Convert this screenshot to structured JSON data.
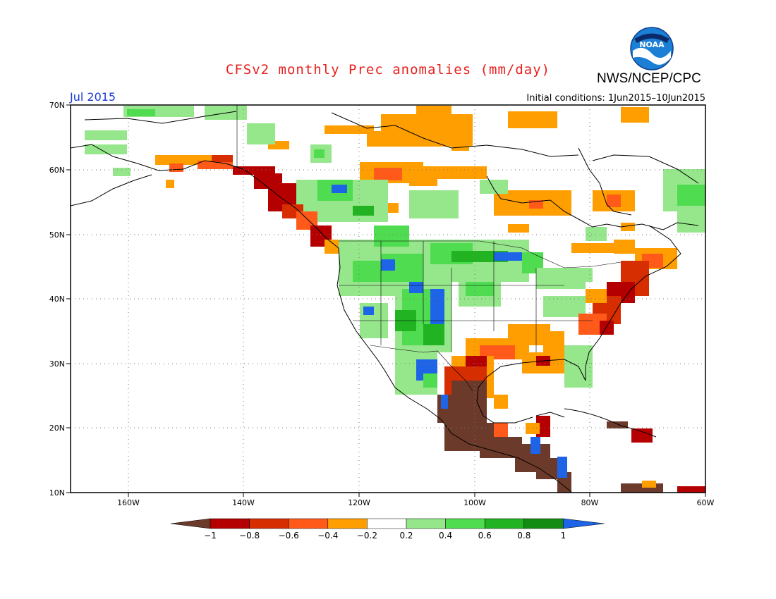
{
  "title": "CFSv2 monthly Prec anomalies (mm/day)",
  "organization": "NWS/NCEP/CPC",
  "logo_text": "NOAA",
  "valid_month": "Jul 2015",
  "initial_conditions": "Initial conditions: 1Jun2015–10Jun2015",
  "map": {
    "lat_labels": [
      "70N",
      "60N",
      "50N",
      "40N",
      "30N",
      "20N",
      "10N"
    ],
    "lon_labels": [
      "160W",
      "140W",
      "120W",
      "100W",
      "80W",
      "60W"
    ]
  },
  "colorbar": {
    "labels": [
      "−1",
      "−0.8",
      "−0.6",
      "−0.4",
      "−0.2",
      "0.2",
      "0.4",
      "0.6",
      "0.8",
      "1"
    ],
    "colors": [
      "#6b3a2a",
      "#b40000",
      "#d62e00",
      "#ff5a1a",
      "#ff9e00",
      "#ffffff",
      "#96e68c",
      "#50dc50",
      "#21b321",
      "#128c12",
      "#1e64e6"
    ]
  },
  "anomaly_regions": [
    {
      "name": "Arctic Canada",
      "level": "-0.4"
    },
    {
      "name": "Gulf of Alaska coast",
      "level": "-0.8"
    },
    {
      "name": "Northern Rockies / Plains",
      "level": "0.6"
    },
    {
      "name": "Southern Rockies",
      "level": "1"
    },
    {
      "name": "Mid-Atlantic / Northeast US",
      "level": "-0.8"
    },
    {
      "name": "Mexico / Central America",
      "level": "-1"
    },
    {
      "name": "Hudson Bay region",
      "level": "-0.4"
    }
  ]
}
